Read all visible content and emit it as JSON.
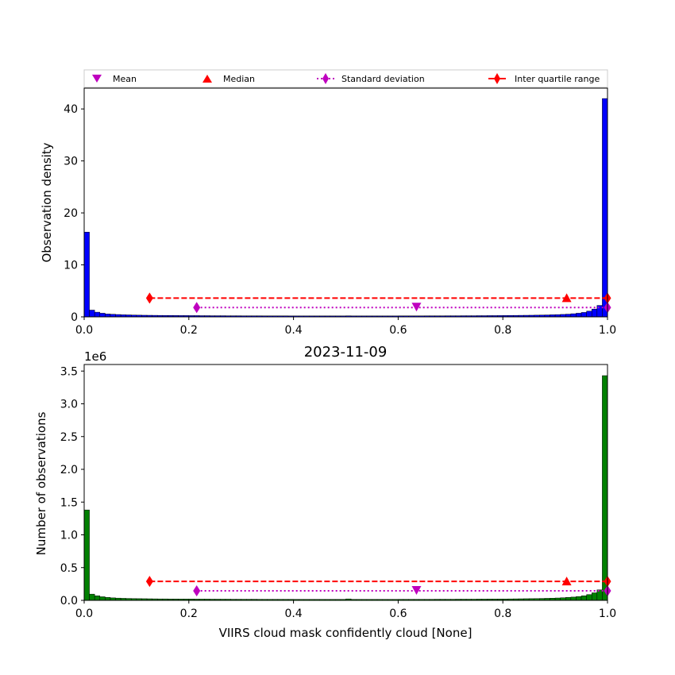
{
  "figure_title": "2023-11-09",
  "legend": {
    "entries": [
      {
        "label": "Mean",
        "marker": "triangle-down",
        "color": "#bf00bf",
        "line": "none"
      },
      {
        "label": "Median",
        "marker": "triangle-up",
        "color": "#ff0000",
        "line": "none"
      },
      {
        "label": "Standard deviation",
        "marker": "thin-diamond",
        "color": "#bf00bf",
        "line": "dotted"
      },
      {
        "label": "Inter quartile range",
        "marker": "thin-diamond",
        "color": "#ff0000",
        "line": "dashed"
      }
    ]
  },
  "chart_data": [
    {
      "type": "bar",
      "subtype": "histogram",
      "ylabel": "Observation density",
      "xlabel": "",
      "color": "#0000ff",
      "xlim": [
        0,
        1
      ],
      "ylim": [
        0,
        44
      ],
      "xticks": [
        0.0,
        0.2,
        0.4,
        0.6,
        0.8,
        1.0
      ],
      "xtick_labels": [
        "0.0",
        "0.2",
        "0.4",
        "0.6",
        "0.8",
        "1.0"
      ],
      "yticks": [
        0,
        10,
        20,
        30,
        40
      ],
      "ytick_labels": [
        "0",
        "10",
        "20",
        "30",
        "40"
      ],
      "bin_count": 100,
      "values": [
        16.3,
        1.3,
        0.9,
        0.7,
        0.55,
        0.5,
        0.45,
        0.4,
        0.38,
        0.35,
        0.33,
        0.31,
        0.3,
        0.29,
        0.28,
        0.27,
        0.27,
        0.26,
        0.25,
        0.25,
        0.24,
        0.24,
        0.23,
        0.23,
        0.22,
        0.22,
        0.22,
        0.21,
        0.21,
        0.21,
        0.2,
        0.2,
        0.2,
        0.2,
        0.19,
        0.19,
        0.19,
        0.19,
        0.19,
        0.18,
        0.18,
        0.18,
        0.18,
        0.18,
        0.18,
        0.18,
        0.18,
        0.18,
        0.18,
        0.18,
        0.2,
        0.18,
        0.18,
        0.18,
        0.18,
        0.18,
        0.18,
        0.18,
        0.18,
        0.18,
        0.19,
        0.19,
        0.19,
        0.19,
        0.19,
        0.2,
        0.2,
        0.2,
        0.2,
        0.21,
        0.21,
        0.21,
        0.22,
        0.22,
        0.22,
        0.23,
        0.23,
        0.24,
        0.24,
        0.25,
        0.26,
        0.27,
        0.28,
        0.29,
        0.3,
        0.31,
        0.33,
        0.35,
        0.37,
        0.4,
        0.43,
        0.47,
        0.52,
        0.6,
        0.7,
        0.85,
        1.1,
        1.5,
        2.2,
        42.0
      ],
      "stats": {
        "mean": 0.635,
        "median": 0.922,
        "std": [
          0.215,
          1.0
        ],
        "iqr": [
          0.125,
          1.0
        ]
      },
      "stat_levels": {
        "mean_median_iqr_y": 3.6,
        "std_y": 1.8
      }
    },
    {
      "type": "bar",
      "subtype": "histogram",
      "title": "2023-11-09",
      "ylabel": "Number of observations",
      "xlabel": "VIIRS cloud mask confidently cloud [None]",
      "color": "#008000",
      "xlim": [
        0,
        1
      ],
      "ylim": [
        0,
        3.6
      ],
      "y_scale_label": "1e6",
      "xticks": [
        0.0,
        0.2,
        0.4,
        0.6,
        0.8,
        1.0
      ],
      "xtick_labels": [
        "0.0",
        "0.2",
        "0.4",
        "0.6",
        "0.8",
        "1.0"
      ],
      "yticks": [
        0.0,
        0.5,
        1.0,
        1.5,
        2.0,
        2.5,
        3.0,
        3.5
      ],
      "ytick_labels": [
        "0.0",
        "0.5",
        "1.0",
        "1.5",
        "2.0",
        "2.5",
        "3.0",
        "3.5"
      ],
      "bin_count": 100,
      "values": [
        1.38,
        0.095,
        0.07,
        0.055,
        0.045,
        0.038,
        0.034,
        0.031,
        0.029,
        0.027,
        0.026,
        0.025,
        0.024,
        0.023,
        0.022,
        0.022,
        0.021,
        0.021,
        0.02,
        0.02,
        0.02,
        0.019,
        0.019,
        0.019,
        0.018,
        0.018,
        0.018,
        0.018,
        0.017,
        0.017,
        0.017,
        0.017,
        0.017,
        0.016,
        0.016,
        0.016,
        0.016,
        0.016,
        0.016,
        0.016,
        0.015,
        0.015,
        0.015,
        0.015,
        0.015,
        0.015,
        0.015,
        0.015,
        0.015,
        0.015,
        0.022,
        0.015,
        0.015,
        0.015,
        0.015,
        0.015,
        0.015,
        0.015,
        0.015,
        0.015,
        0.016,
        0.016,
        0.016,
        0.016,
        0.016,
        0.016,
        0.016,
        0.017,
        0.017,
        0.017,
        0.017,
        0.018,
        0.018,
        0.018,
        0.018,
        0.019,
        0.019,
        0.02,
        0.02,
        0.021,
        0.021,
        0.022,
        0.023,
        0.024,
        0.025,
        0.026,
        0.027,
        0.029,
        0.031,
        0.033,
        0.036,
        0.04,
        0.045,
        0.05,
        0.058,
        0.07,
        0.088,
        0.115,
        0.16,
        3.43
      ],
      "stats": {
        "mean": 0.635,
        "median": 0.922,
        "std": [
          0.215,
          1.0
        ],
        "iqr": [
          0.125,
          1.0
        ]
      },
      "stat_levels": {
        "mean_median_iqr_y": 0.29,
        "std_y": 0.145
      }
    }
  ]
}
